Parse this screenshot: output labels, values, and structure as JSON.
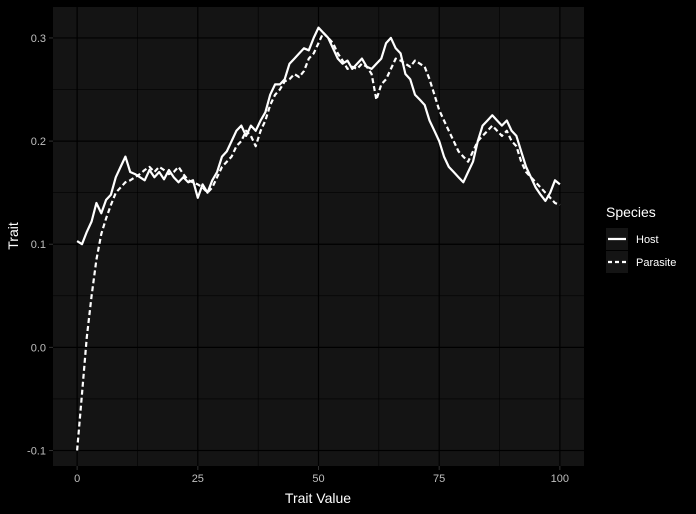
{
  "chart_data": {
    "type": "line",
    "title": "",
    "xlabel": "Trait Value",
    "ylabel": "Trait",
    "xlim": [
      -5,
      105
    ],
    "ylim": [
      -0.115,
      0.33
    ],
    "x_ticks": [
      0,
      25,
      50,
      75,
      100
    ],
    "x_tick_labels": [
      "0",
      "25",
      "50",
      "75",
      "100"
    ],
    "y_ticks": [
      -0.1,
      0.0,
      0.1,
      0.2,
      0.3
    ],
    "y_tick_labels": [
      "-0.1",
      "0.0",
      "0.1",
      "0.2",
      "0.3"
    ],
    "grid": true,
    "legend": {
      "title": "Species",
      "position": "right"
    },
    "colors": {
      "background": "#000000",
      "panel": "#141414",
      "line": "#ffffff"
    },
    "series": [
      {
        "name": "Host",
        "linestyle": "solid",
        "x": [
          0,
          1,
          2,
          3,
          4,
          5,
          6,
          7,
          8,
          9,
          10,
          11,
          12,
          13,
          14,
          15,
          16,
          17,
          18,
          19,
          20,
          21,
          22,
          23,
          24,
          25,
          26,
          27,
          28,
          29,
          30,
          31,
          32,
          33,
          34,
          35,
          36,
          37,
          38,
          39,
          40,
          41,
          42,
          43,
          44,
          45,
          46,
          47,
          48,
          49,
          50,
          51,
          52,
          53,
          54,
          55,
          56,
          57,
          58,
          59,
          60,
          61,
          62,
          63,
          64,
          65,
          66,
          67,
          68,
          69,
          70,
          71,
          72,
          73,
          74,
          75,
          76,
          77,
          78,
          79,
          80,
          81,
          82,
          83,
          84,
          85,
          86,
          87,
          88,
          89,
          90,
          91,
          92,
          93,
          94,
          95,
          96,
          97,
          98,
          99,
          100
        ],
        "y": [
          0.103,
          0.1,
          0.112,
          0.122,
          0.14,
          0.13,
          0.143,
          0.148,
          0.165,
          0.175,
          0.185,
          0.17,
          0.168,
          0.165,
          0.162,
          0.172,
          0.165,
          0.17,
          0.163,
          0.172,
          0.165,
          0.16,
          0.165,
          0.16,
          0.162,
          0.145,
          0.158,
          0.15,
          0.162,
          0.17,
          0.185,
          0.19,
          0.2,
          0.21,
          0.215,
          0.205,
          0.215,
          0.21,
          0.22,
          0.228,
          0.245,
          0.255,
          0.255,
          0.26,
          0.275,
          0.28,
          0.285,
          0.29,
          0.288,
          0.3,
          0.31,
          0.305,
          0.3,
          0.29,
          0.28,
          0.275,
          0.278,
          0.27,
          0.275,
          0.28,
          0.272,
          0.27,
          0.275,
          0.28,
          0.295,
          0.3,
          0.29,
          0.285,
          0.265,
          0.26,
          0.245,
          0.24,
          0.235,
          0.22,
          0.21,
          0.2,
          0.185,
          0.175,
          0.17,
          0.165,
          0.16,
          0.17,
          0.18,
          0.2,
          0.215,
          0.22,
          0.225,
          0.22,
          0.215,
          0.22,
          0.21,
          0.205,
          0.19,
          0.175,
          0.165,
          0.155,
          0.148,
          0.142,
          0.15,
          0.162,
          0.158
        ]
      },
      {
        "name": "Parasite",
        "linestyle": "dashed",
        "x": [
          0,
          1,
          2,
          3,
          4,
          5,
          6,
          7,
          8,
          9,
          10,
          11,
          12,
          13,
          14,
          15,
          16,
          17,
          18,
          19,
          20,
          21,
          22,
          23,
          24,
          25,
          26,
          27,
          28,
          29,
          30,
          31,
          32,
          33,
          34,
          35,
          36,
          37,
          38,
          39,
          40,
          41,
          42,
          43,
          44,
          45,
          46,
          47,
          48,
          49,
          50,
          51,
          52,
          53,
          54,
          55,
          56,
          57,
          58,
          59,
          60,
          61,
          62,
          63,
          64,
          65,
          66,
          67,
          68,
          69,
          70,
          71,
          72,
          73,
          74,
          75,
          76,
          77,
          78,
          79,
          80,
          81,
          82,
          83,
          84,
          85,
          86,
          87,
          88,
          89,
          90,
          91,
          92,
          93,
          94,
          95,
          96,
          97,
          98,
          99,
          100
        ],
        "y": [
          -0.1,
          -0.045,
          0.01,
          0.05,
          0.085,
          0.11,
          0.125,
          0.138,
          0.15,
          0.155,
          0.16,
          0.162,
          0.165,
          0.168,
          0.172,
          0.175,
          0.17,
          0.175,
          0.172,
          0.168,
          0.17,
          0.175,
          0.168,
          0.162,
          0.16,
          0.158,
          0.155,
          0.15,
          0.155,
          0.165,
          0.175,
          0.18,
          0.185,
          0.195,
          0.2,
          0.21,
          0.205,
          0.195,
          0.21,
          0.22,
          0.235,
          0.245,
          0.25,
          0.258,
          0.26,
          0.265,
          0.262,
          0.268,
          0.28,
          0.285,
          0.295,
          0.305,
          0.3,
          0.295,
          0.285,
          0.278,
          0.27,
          0.272,
          0.27,
          0.275,
          0.272,
          0.265,
          0.24,
          0.255,
          0.26,
          0.27,
          0.28,
          0.278,
          0.275,
          0.272,
          0.278,
          0.275,
          0.272,
          0.26,
          0.245,
          0.23,
          0.22,
          0.21,
          0.2,
          0.19,
          0.185,
          0.18,
          0.19,
          0.2,
          0.205,
          0.21,
          0.215,
          0.21,
          0.205,
          0.21,
          0.2,
          0.195,
          0.18,
          0.17,
          0.165,
          0.16,
          0.155,
          0.15,
          0.145,
          0.14,
          0.138
        ]
      }
    ]
  }
}
